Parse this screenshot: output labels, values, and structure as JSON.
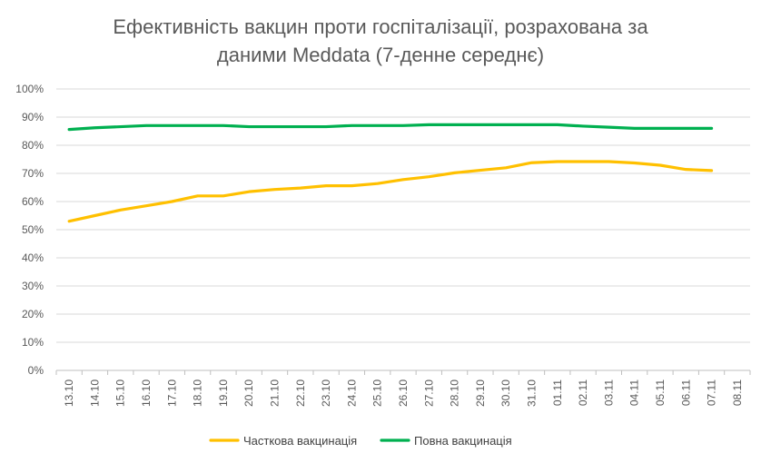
{
  "chart_data": {
    "type": "line",
    "title_line1": "Ефективність вакцин проти госпіталізації, розрахована за",
    "title_line2": "даними Meddata (7-денне середнє)",
    "categories": [
      "13.10",
      "14.10",
      "15.10",
      "16.10",
      "17.10",
      "18.10",
      "19.10",
      "20.10",
      "21.10",
      "22.10",
      "23.10",
      "24.10",
      "25.10",
      "26.10",
      "27.10",
      "28.10",
      "29.10",
      "30.10",
      "31.10",
      "01.11",
      "02.11",
      "03.11",
      "04.11",
      "05.11",
      "06.11",
      "07.11",
      "08.11"
    ],
    "y_ticks": [
      "0%",
      "10%",
      "20%",
      "30%",
      "40%",
      "50%",
      "60%",
      "70%",
      "80%",
      "90%",
      "100%"
    ],
    "ylim": [
      0,
      100
    ],
    "grid": true,
    "legend_position": "bottom",
    "series": [
      {
        "name": "Часткова вакцинація",
        "color": "#FFC000",
        "values": [
          53,
          55,
          57,
          58.5,
          60,
          62,
          62,
          63.5,
          64.3,
          64.8,
          65.6,
          65.6,
          66.4,
          67.8,
          68.8,
          70.2,
          71.1,
          72,
          73.8,
          74.2,
          74.2,
          74.2,
          73.7,
          72.9,
          71.4,
          71,
          null
        ]
      },
      {
        "name": "Повна вакцинація",
        "color": "#00B050",
        "values": [
          85.6,
          86.2,
          86.6,
          87,
          87,
          87,
          87,
          86.6,
          86.6,
          86.6,
          86.6,
          87,
          87,
          87,
          87.3,
          87.3,
          87.3,
          87.3,
          87.3,
          87.3,
          86.8,
          86.4,
          86,
          86,
          86,
          86,
          null
        ]
      }
    ]
  }
}
